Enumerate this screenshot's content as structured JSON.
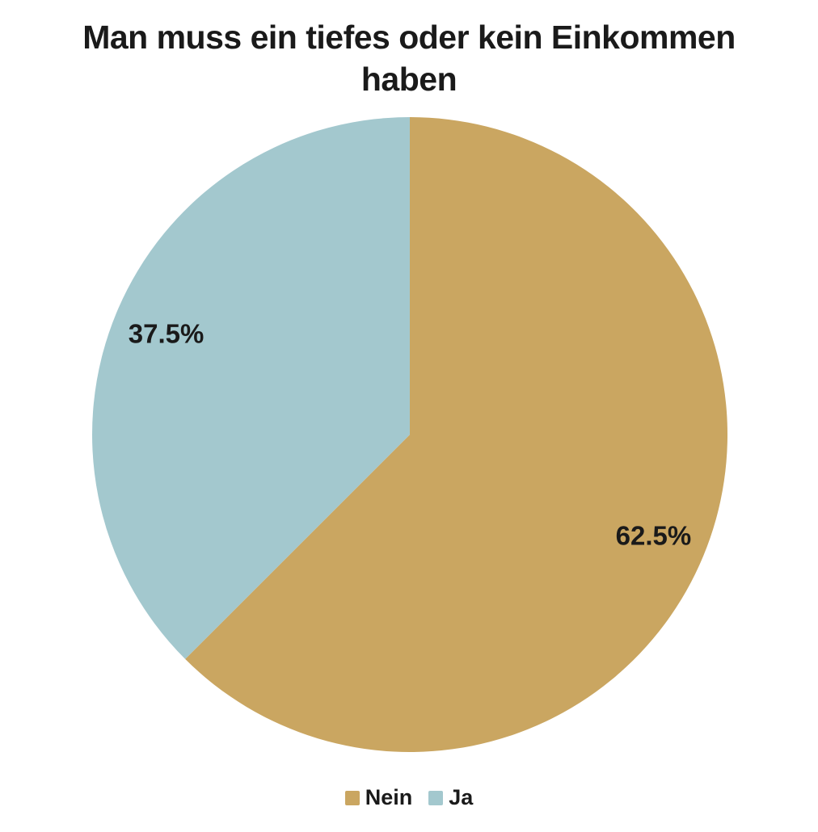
{
  "title": "Man muss ein tiefes oder kein Einkommen haben",
  "title_lines": [
    "Man muss ein tiefes oder kein Einkommen",
    "haben"
  ],
  "chart_data": {
    "type": "pie",
    "title": "Man muss ein tiefes oder kein Einkommen haben",
    "categories": [
      "Nein",
      "Ja"
    ],
    "values": [
      62.5,
      37.5
    ],
    "slices": [
      {
        "name": "Nein",
        "value": 62.5,
        "label": "62.5%",
        "color": "#CAA661"
      },
      {
        "name": "Ja",
        "value": 37.5,
        "label": "37.5%",
        "color": "#A3C8CE"
      }
    ],
    "start_angle_deg": 0,
    "direction": "clockwise",
    "legend_position": "bottom",
    "label_color": "#1a1a1a",
    "background_color": "#ffffff"
  }
}
